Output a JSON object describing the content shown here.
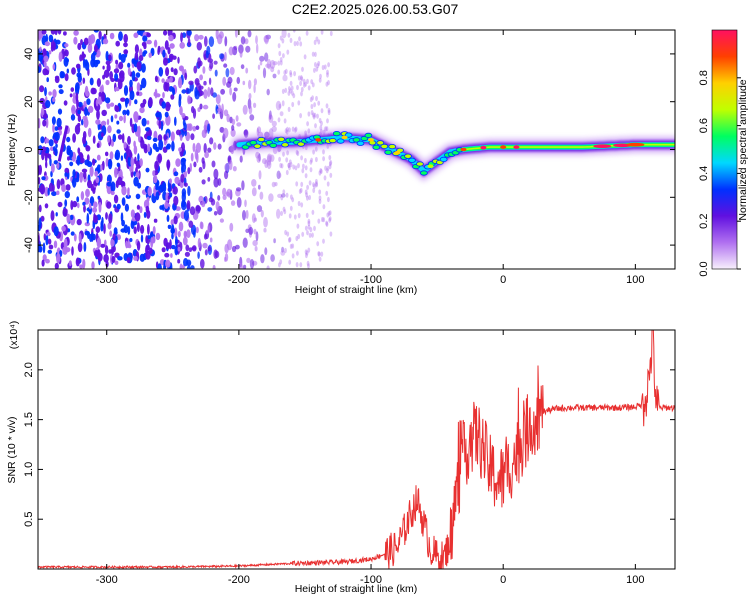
{
  "figure": {
    "title": "C2E2.2025.026.00.53.G07"
  },
  "chart_data": [
    {
      "type": "heatmap",
      "xlabel": "Height of straight line (km)",
      "ylabel": "Frequency (Hz)",
      "xlim": [
        -352,
        130
      ],
      "ylim": [
        -50,
        50
      ],
      "xticks": [
        -300,
        -200,
        -100,
        0,
        100
      ],
      "xtick_labels": [
        "-300",
        "-200",
        "-100",
        "0",
        "100"
      ],
      "yticks": [
        -40,
        -20,
        0,
        20,
        40
      ],
      "ytick_labels": [
        "-40",
        "-20",
        "0",
        "20",
        "40"
      ],
      "colorbar": {
        "label": "Normalized spectral amplitude",
        "range": [
          0,
          1
        ],
        "ticks": [
          0.0,
          0.2,
          0.4,
          0.6,
          0.8
        ],
        "tick_labels": [
          "0.0",
          "0.2",
          "0.4",
          "0.6",
          "0.8"
        ],
        "colors": [
          "#f8f0fc",
          "#b070f0",
          "#6010e0",
          "#0030ff",
          "#00d8ff",
          "#00ff60",
          "#c0ff00",
          "#ffd000",
          "#ff4000",
          "#ff1060"
        ]
      },
      "noise_region_x": [
        -352,
        -165
      ],
      "ridge": {
        "x": [
          -200,
          -180,
          -160,
          -140,
          -120,
          -100,
          -85,
          -70,
          -60,
          -50,
          -40,
          -30,
          -10,
          0,
          20,
          60,
          100,
          130
        ],
        "y": [
          2,
          3,
          3,
          4,
          5,
          4,
          0,
          -4,
          -9,
          -5,
          -1,
          0,
          1,
          1,
          1,
          1,
          2,
          2
        ]
      },
      "grid": false
    },
    {
      "type": "line",
      "xlabel": "Height of straight line (km)",
      "ylabel": "SNR (10 * v/v)",
      "y_multiplier": "(x10⁴)",
      "xlim": [
        -352,
        130
      ],
      "ylim": [
        0,
        2.4
      ],
      "xticks": [
        -300,
        -200,
        -100,
        0,
        100
      ],
      "xtick_labels": [
        "-300",
        "-200",
        "-100",
        "0",
        "100"
      ],
      "yticks": [
        0.5,
        1.0,
        1.5,
        2.0
      ],
      "ytick_labels": [
        "0.5",
        "1.0",
        "1.5",
        "2.0"
      ],
      "line_color": "#e83030",
      "series": [
        {
          "x": [
            -352,
            -300,
            -250,
            -200,
            -170,
            -150,
            -120,
            -100,
            -90,
            -80,
            -75,
            -70,
            -65,
            -60,
            -55,
            -50,
            -45,
            -40,
            -35,
            -30,
            -25,
            -20,
            -15,
            -10,
            -5,
            0,
            10,
            20,
            30,
            40,
            50,
            60,
            70,
            80,
            90,
            100,
            105,
            110,
            113,
            116,
            120,
            130
          ],
          "y": [
            0.02,
            0.02,
            0.02,
            0.03,
            0.05,
            0.06,
            0.07,
            0.1,
            0.15,
            0.22,
            0.38,
            0.55,
            0.7,
            0.45,
            0.2,
            0.12,
            0.1,
            0.3,
            0.8,
            1.1,
            1.3,
            1.35,
            1.2,
            1.0,
            0.9,
            0.9,
            1.15,
            1.45,
            1.58,
            1.61,
            1.62,
            1.62,
            1.62,
            1.62,
            1.62,
            1.63,
            1.65,
            1.85,
            2.35,
            1.6,
            1.62,
            1.62
          ]
        }
      ],
      "grid": false
    }
  ]
}
